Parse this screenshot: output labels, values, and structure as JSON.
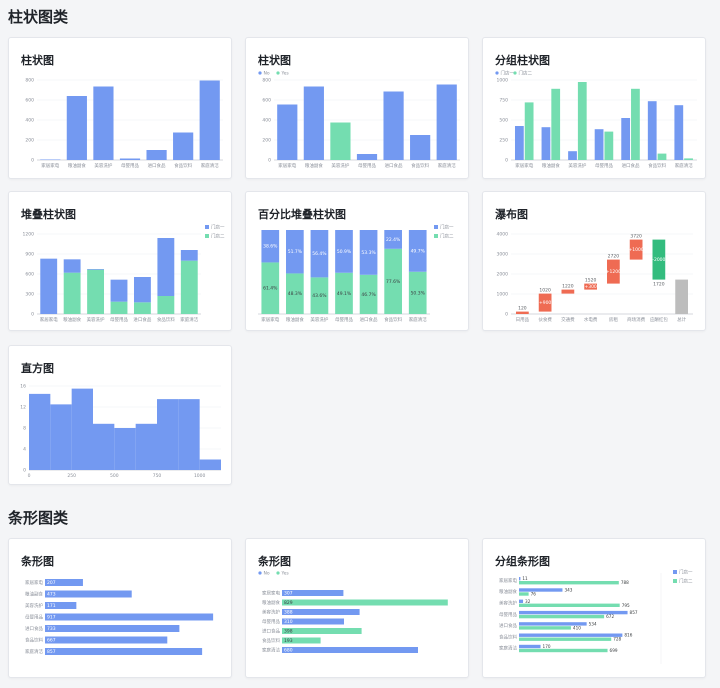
{
  "sections": {
    "bar_title": "柱状图类",
    "hbar_title": "条形图类"
  },
  "colors": {
    "blue": "#7399f1",
    "green": "#74ddb0",
    "red": "#ef6b53",
    "orange": "#f28a6a",
    "darkgreen": "#33bc7e",
    "grey": "#bdbdbd",
    "axis": "#c9cdd4",
    "grid": "#eeeff2",
    "tick": "#8a8f99"
  },
  "cards": [
    {
      "title": "柱状图"
    },
    {
      "title": "柱状图"
    },
    {
      "title": "分组柱状图"
    },
    {
      "title": "堆叠柱状图"
    },
    {
      "title": "百分比堆叠柱状图"
    },
    {
      "title": "瀑布图"
    },
    {
      "title": "直方图"
    },
    {
      "title": "条形图"
    },
    {
      "title": "条形图"
    },
    {
      "title": "分组条形图"
    }
  ],
  "chart_data": [
    {
      "type": "bar",
      "categories": [
        "家居家电",
        "粮油副食",
        "美容洗护",
        "母婴用品",
        "进口食品",
        "食品饮料",
        "家庭清洁"
      ],
      "values": [
        5,
        640,
        735,
        15,
        100,
        275,
        795
      ],
      "ylim": [
        0,
        800
      ],
      "yticks": [
        0,
        200,
        400,
        600,
        800
      ]
    },
    {
      "type": "bar",
      "legend": [
        "No",
        "Yes"
      ],
      "categories": [
        "家居家电",
        "粮油副食",
        "美容洗护",
        "母婴用品",
        "进口食品",
        "食品饮料",
        "家庭清洁"
      ],
      "values": [
        555,
        735,
        375,
        60,
        685,
        250,
        755
      ],
      "flags": [
        "No",
        "No",
        "Yes",
        "No",
        "No",
        "No",
        "No"
      ],
      "ylim": [
        0,
        800
      ],
      "yticks": [
        0,
        200,
        400,
        600,
        800
      ]
    },
    {
      "type": "bar",
      "categories": [
        "家居家电",
        "粮油副食",
        "美容洗护",
        "母婴用品",
        "进口食品",
        "食品饮料",
        "家庭清洁"
      ],
      "series": [
        {
          "name": "门店一",
          "values": [
            425,
            410,
            110,
            385,
            525,
            735,
            685
          ]
        },
        {
          "name": "门店二",
          "values": [
            720,
            890,
            975,
            355,
            890,
            80,
            20
          ]
        }
      ],
      "ylim": [
        0,
        1000
      ],
      "yticks": [
        0,
        250,
        500,
        750,
        1000
      ]
    },
    {
      "type": "bar",
      "categories": [
        "家居家电",
        "粮油副食",
        "美容洗护",
        "母婴用品",
        "进口食品",
        "食品饮料",
        "家庭清洁"
      ],
      "series": [
        {
          "name": "门店一",
          "values": [
            830,
            200,
            10,
            330,
            380,
            870,
            160
          ]
        },
        {
          "name": "门店二",
          "values": [
            0,
            620,
            665,
            185,
            175,
            270,
            800
          ]
        }
      ],
      "ylim": [
        0,
        1200
      ],
      "yticks": [
        0,
        300,
        600,
        900,
        1200
      ]
    },
    {
      "type": "bar",
      "categories": [
        "家居家电",
        "粮油副食",
        "美容洗护",
        "母婴用品",
        "进口食品",
        "食品饮料",
        "家庭清洁"
      ],
      "series": [
        {
          "name": "门店一",
          "values": [
            38.6,
            51.7,
            56.4,
            50.9,
            53.3,
            22.4,
            49.7
          ]
        },
        {
          "name": "门店二",
          "values": [
            61.4,
            48.3,
            43.6,
            49.1,
            46.7,
            77.6,
            50.3
          ]
        }
      ],
      "labels_top": [
        "38.6%",
        "51.7%",
        "56.4%",
        "50.9%",
        "53.3%",
        "22.4%",
        "49.7%"
      ],
      "labels_bottom": [
        "61.4%",
        "48.3%",
        "43.6%",
        "49.1%",
        "46.7%",
        "77.6%",
        "50.3%"
      ],
      "ylim": [
        0,
        100
      ]
    },
    {
      "type": "bar",
      "categories": [
        "日用品",
        "伙食费",
        "交通费",
        "水电费",
        "房租",
        "商场消费",
        "应酬红包",
        "总计"
      ],
      "steps": [
        {
          "start": 0,
          "end": 120,
          "top_label": "120",
          "inner_label": "",
          "kind": "up"
        },
        {
          "start": 120,
          "end": 1020,
          "top_label": "1020",
          "inner_label": "+900",
          "kind": "up"
        },
        {
          "start": 1020,
          "end": 1220,
          "top_label": "1220",
          "inner_label": "",
          "kind": "up"
        },
        {
          "start": 1220,
          "end": 1520,
          "top_label": "1520",
          "inner_label": "+300",
          "kind": "up"
        },
        {
          "start": 1520,
          "end": 2720,
          "top_label": "2720",
          "inner_label": "+1200",
          "kind": "up"
        },
        {
          "start": 2720,
          "end": 3720,
          "top_label": "3720",
          "inner_label": "+1000",
          "kind": "up"
        },
        {
          "start": 3720,
          "end": 1720,
          "top_label": "",
          "inner_label": "-2000",
          "bottom_label": "1720",
          "kind": "down"
        },
        {
          "start": 0,
          "end": 1720,
          "top_label": "",
          "inner_label": "",
          "kind": "total"
        }
      ],
      "ylim": [
        0,
        4000
      ],
      "yticks": [
        0,
        1000,
        2000,
        3000,
        4000
      ]
    },
    {
      "type": "bar",
      "bins": [
        {
          "from": 0,
          "to": 125,
          "count": 14.5
        },
        {
          "from": 125,
          "to": 250,
          "count": 12.5
        },
        {
          "from": 250,
          "to": 375,
          "count": 15.5
        },
        {
          "from": 375,
          "to": 500,
          "count": 8.8
        },
        {
          "from": 500,
          "to": 625,
          "count": 8
        },
        {
          "from": 625,
          "to": 750,
          "count": 8.8
        },
        {
          "from": 750,
          "to": 875,
          "count": 13.5
        },
        {
          "from": 875,
          "to": 1000,
          "count": 13.5
        },
        {
          "from": 1000,
          "to": 1125,
          "count": 2
        }
      ],
      "xlim": [
        0,
        1125
      ],
      "xticks": [
        0,
        250,
        500,
        750,
        1000
      ],
      "ylim": [
        0,
        16
      ],
      "yticks": [
        0,
        4,
        8,
        12,
        16
      ]
    },
    {
      "type": "bar",
      "orientation": "horizontal",
      "categories": [
        "家居家电",
        "粮油副食",
        "美容洗护",
        "母婴用品",
        "进口食品",
        "食品饮料",
        "家庭清洁"
      ],
      "values": [
        207,
        473,
        171,
        917,
        733,
        667,
        857
      ],
      "xmax": 960
    },
    {
      "type": "bar",
      "orientation": "horizontal",
      "legend": [
        "No",
        "Yes"
      ],
      "categories": [
        "家居家电",
        "粮油副食",
        "美容洗护",
        "母婴用品",
        "进口食品",
        "食品饮料",
        "家庭清洁"
      ],
      "values": [
        307,
        829,
        388,
        310,
        398,
        193,
        680
      ],
      "labels": [
        "307",
        "829",
        "388",
        "310",
        "398",
        "193",
        "680"
      ],
      "flags": [
        "No",
        "Yes",
        "No",
        "No",
        "Yes",
        "Yes",
        "No"
      ],
      "xmax": 880
    },
    {
      "type": "bar",
      "orientation": "horizontal",
      "categories": [
        "家居家电",
        "粮油副食",
        "美容洗护",
        "母婴用品",
        "进口食品",
        "食品饮料",
        "家庭清洁"
      ],
      "series": [
        {
          "name": "门店一",
          "values": [
            11,
            343,
            32,
            857,
            534,
            816,
            170
          ]
        },
        {
          "name": "门店二",
          "values": [
            788,
            76,
            795,
            672,
            410,
            728,
            699
          ]
        }
      ],
      "labels1": [
        "11",
        "343",
        "32",
        "857",
        "534",
        "816",
        "170"
      ],
      "labels2": [
        "788",
        "76",
        "795",
        "672",
        "410",
        "728",
        "699"
      ],
      "xmax": 900
    }
  ]
}
